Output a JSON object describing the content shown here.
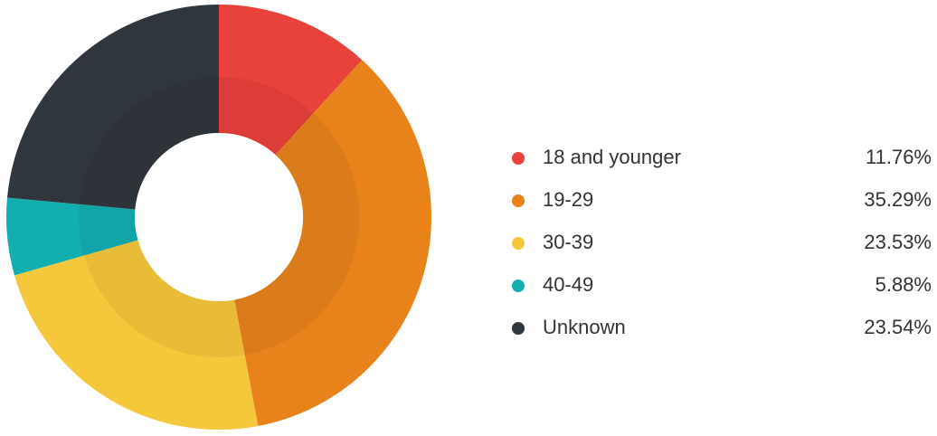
{
  "chart_data": {
    "type": "donut",
    "categories": [
      "18 and younger",
      "19-29",
      "30-39",
      "40-49",
      "Unknown"
    ],
    "values": [
      11.76,
      35.29,
      23.53,
      5.88,
      23.54
    ],
    "value_labels": [
      "11.76%",
      "35.29%",
      "23.53%",
      "5.88%",
      "23.54%"
    ],
    "colors": [
      "#e8423a",
      "#e8821b",
      "#f5c73a",
      "#13aeb0",
      "#30363d"
    ]
  }
}
